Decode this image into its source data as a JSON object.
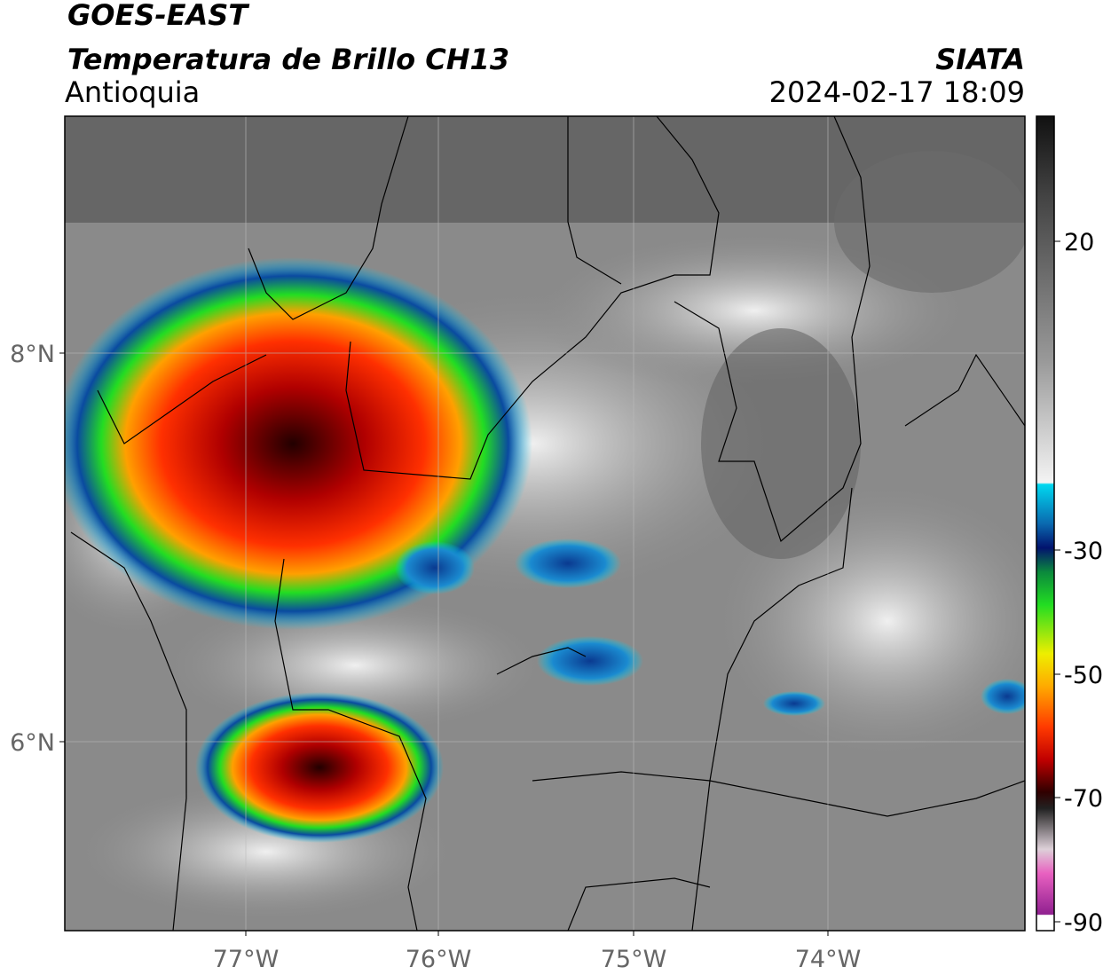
{
  "header": {
    "satellite": "GOES-EAST",
    "title": "Temperatura de Brillo CH13",
    "region": "Antioquia",
    "agency": "SIATA",
    "datetime": "2024-02-17 18:09"
  },
  "map": {
    "lat_labels": [
      "8°N",
      "6°N"
    ],
    "lon_labels": [
      "77°W",
      "76°W",
      "75°W",
      "74°W"
    ]
  },
  "colorbar": {
    "tick_labels": [
      "20",
      "-30",
      "-50",
      "-70",
      "-90"
    ]
  }
}
